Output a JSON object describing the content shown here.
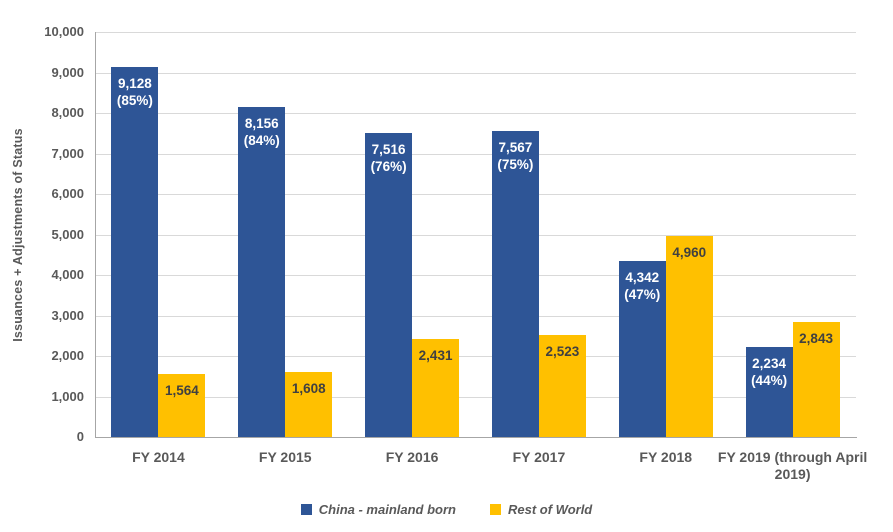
{
  "chart_data": {
    "type": "bar",
    "title": "",
    "ylabel": "Issuances  + Adjustments of Status",
    "xlabel": "",
    "ylim": [
      0,
      10000
    ],
    "ytick_step": 1000,
    "yticks": [
      "0",
      "1,000",
      "2,000",
      "3,000",
      "4,000",
      "5,000",
      "6,000",
      "7,000",
      "8,000",
      "9,000",
      "10,000"
    ],
    "grid": true,
    "legend_position": "bottom",
    "categories": [
      "FY 2014",
      "FY 2015",
      "FY 2016",
      "FY 2017",
      "FY 2018",
      "FY 2019 (through April 2019)"
    ],
    "series": [
      {
        "name": "China - mainland born",
        "color": "#2E5596",
        "label_color": "#FFFFFF",
        "values": [
          9128,
          8156,
          7516,
          7567,
          4342,
          2234
        ],
        "value_labels": [
          "9,128",
          "8,156",
          "7,516",
          "7,567",
          "4,342",
          "2,234"
        ],
        "pct_labels": [
          "(85%)",
          "(84%)",
          "(76%)",
          "(75%)",
          "(47%)",
          "(44%)"
        ]
      },
      {
        "name": "Rest of World",
        "color": "#FFC000",
        "label_color": "#404040",
        "values": [
          1564,
          1608,
          2431,
          2523,
          4960,
          2843
        ],
        "value_labels": [
          "1,564",
          "1,608",
          "2,431",
          "2,523",
          "4,960",
          "2,843"
        ],
        "pct_labels": []
      }
    ]
  },
  "colors": {
    "axis_line": "#A6A6A6",
    "gridline": "#D9D9D9",
    "tick_text": "#595959"
  }
}
